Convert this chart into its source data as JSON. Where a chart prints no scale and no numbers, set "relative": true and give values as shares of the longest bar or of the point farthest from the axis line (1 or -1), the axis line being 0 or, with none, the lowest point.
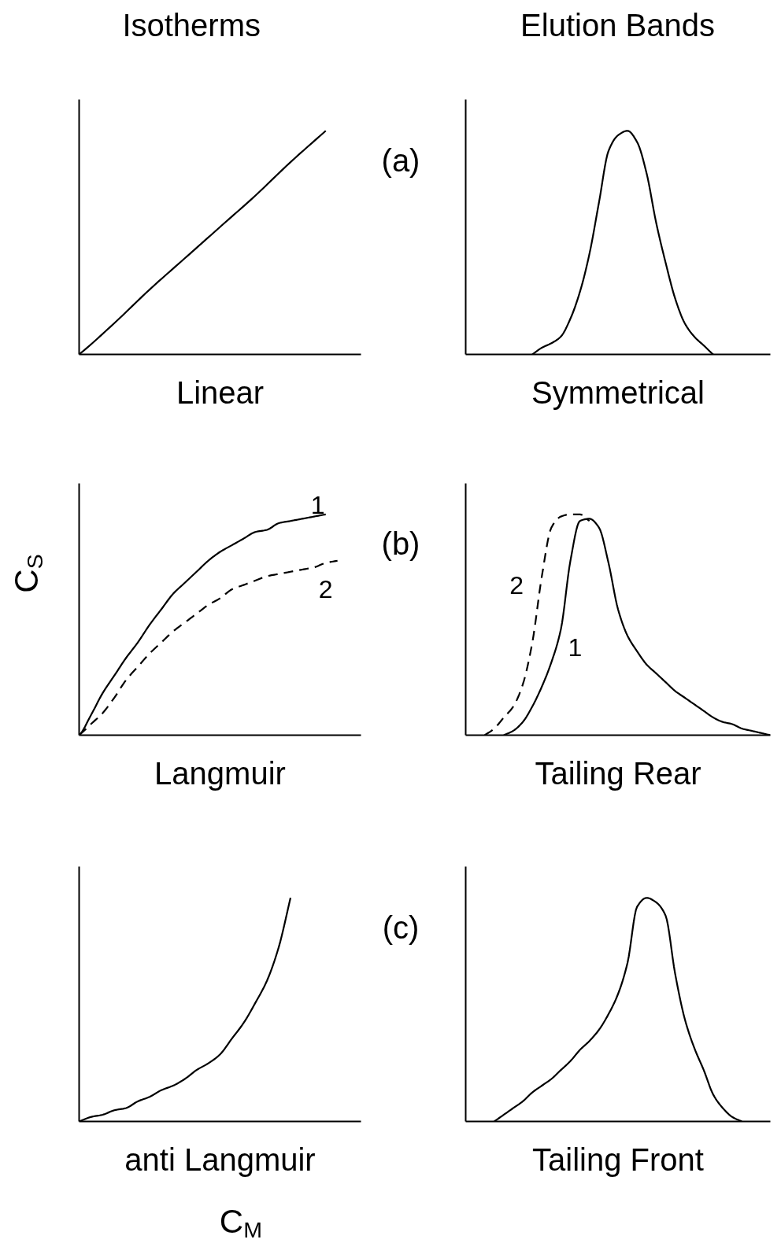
{
  "chart_data": [
    {
      "type": "line",
      "title": "Isotherms",
      "xlabel": "Linear",
      "relative": true,
      "categories": [
        null,
        null,
        null,
        null,
        null,
        null,
        null,
        null,
        null
      ],
      "color": "#000000",
      "values": [
        0,
        0.14,
        0.29,
        0.43,
        0.57,
        0.71,
        0.86,
        1.0,
        null
      ]
    },
    {
      "type": "line",
      "title": "Elution Bands",
      "xlabel": "Symmetrical",
      "annotations": [
        "(a)"
      ],
      "relative": true,
      "categories": [
        null,
        null,
        null,
        null,
        null,
        null,
        null,
        null,
        null,
        null,
        null,
        null,
        null,
        null,
        null,
        null,
        null,
        null,
        null,
        null,
        null,
        null,
        null,
        null,
        null,
        null,
        null,
        null,
        null,
        null,
        null,
        null,
        null
      ],
      "color": "#000000",
      "values": [
        null,
        null,
        null,
        null,
        null,
        null,
        null,
        0,
        0.03,
        0.05,
        0.08,
        0.16,
        0.28,
        0.45,
        0.68,
        0.91,
        0.98,
        1.0,
        0.95,
        0.81,
        0.59,
        0.41,
        0.25,
        0.14,
        0.08,
        0.04,
        0.0,
        null,
        null,
        null,
        null,
        null,
        null
      ]
    },
    {
      "type": "line",
      "xlabel": "Langmuir",
      "ylabel": "C$_{S}$",
      "relative": true,
      "categories": [
        null,
        null,
        null,
        null,
        null,
        null,
        null,
        null,
        null,
        null,
        null,
        null,
        null,
        null,
        null,
        null,
        null,
        null,
        null,
        null,
        null,
        null,
        null,
        null,
        null
      ],
      "series": [
        {
          "name": "1",
          "color": "#000000",
          "line_style": "solid",
          "values": [
            0,
            0.09,
            0.19,
            0.27,
            0.35,
            0.42,
            0.5,
            0.57,
            0.64,
            0.69,
            0.74,
            0.79,
            0.83,
            0.86,
            0.89,
            0.92,
            0.93,
            0.96,
            0.97,
            0.98,
            0.99,
            1.0,
            null,
            null,
            null
          ]
        },
        {
          "name": "2",
          "color": "#000000",
          "line_style": "dashed",
          "values": [
            0,
            0.05,
            0.1,
            0.17,
            0.25,
            0.31,
            0.37,
            0.42,
            0.47,
            0.51,
            0.55,
            0.59,
            0.62,
            0.66,
            0.68,
            0.7,
            0.72,
            0.73,
            0.74,
            0.75,
            0.76,
            0.78,
            0.79,
            null,
            null
          ]
        }
      ]
    },
    {
      "type": "line",
      "xlabel": "Tailing Rear",
      "annotations": [
        "(b)"
      ],
      "relative": true,
      "categories": [
        null,
        null,
        null,
        null,
        null,
        null,
        null,
        null,
        null,
        null,
        null,
        null,
        null,
        null,
        null,
        null,
        null,
        null,
        null,
        null,
        null,
        null,
        null,
        null,
        null,
        null,
        null,
        null,
        null,
        null,
        null,
        null,
        null
      ],
      "series": [
        {
          "name": "1",
          "color": "#000000",
          "line_style": "solid",
          "values": [
            null,
            null,
            null,
            null,
            0,
            0.02,
            0.06,
            0.13,
            0.22,
            0.33,
            0.48,
            0.79,
            0.97,
            0.98,
            0.94,
            0.78,
            0.57,
            0.45,
            0.38,
            0.32,
            0.28,
            0.24,
            0.2,
            0.17,
            0.14,
            0.11,
            0.08,
            0.06,
            0.05,
            0.03,
            0.02,
            0.01,
            0.0
          ]
        },
        {
          "name": "2",
          "color": "#000000",
          "line_style": "dashed",
          "values": [
            null,
            null,
            0,
            0.03,
            0.08,
            0.13,
            0.23,
            0.42,
            0.72,
            0.94,
            0.99,
            1.0,
            1.0,
            0.97,
            null,
            null,
            null,
            null,
            null,
            null,
            null,
            null,
            null,
            null,
            null,
            null,
            null,
            null,
            null,
            null,
            null,
            null,
            null
          ]
        }
      ]
    },
    {
      "type": "line",
      "xlabel": "anti Langmuir",
      "annotations": [
        "C$_{M}$"
      ],
      "relative": true,
      "categories": [
        null,
        null,
        null,
        null,
        null,
        null,
        null,
        null,
        null,
        null,
        null,
        null,
        null,
        null,
        null,
        null,
        null,
        null,
        null,
        null,
        null,
        null,
        null,
        null,
        null
      ],
      "color": "#000000",
      "values": [
        0,
        0.02,
        0.03,
        0.05,
        0.06,
        0.09,
        0.11,
        0.14,
        0.16,
        0.19,
        0.23,
        0.26,
        0.3,
        0.37,
        0.44,
        0.53,
        0.63,
        0.78,
        1.0,
        null,
        null,
        null,
        null,
        null,
        null
      ]
    },
    {
      "type": "line",
      "xlabel": "Tailing Front",
      "annotations": [
        "(c)"
      ],
      "relative": true,
      "categories": [
        null,
        null,
        null,
        null,
        null,
        null,
        null,
        null,
        null,
        null,
        null,
        null,
        null,
        null,
        null,
        null,
        null,
        null,
        null,
        null,
        null,
        null,
        null,
        null,
        null,
        null,
        null,
        null,
        null,
        null,
        null,
        null,
        null
      ],
      "color": "#000000",
      "values": [
        null,
        null,
        null,
        0,
        0.03,
        0.06,
        0.09,
        0.13,
        0.16,
        0.19,
        0.23,
        0.27,
        0.32,
        0.36,
        0.41,
        0.48,
        0.57,
        0.71,
        0.96,
        1.0,
        0.98,
        0.92,
        0.66,
        0.46,
        0.33,
        0.23,
        0.12,
        0.06,
        0.02,
        0.0,
        null,
        null,
        null
      ]
    }
  ]
}
